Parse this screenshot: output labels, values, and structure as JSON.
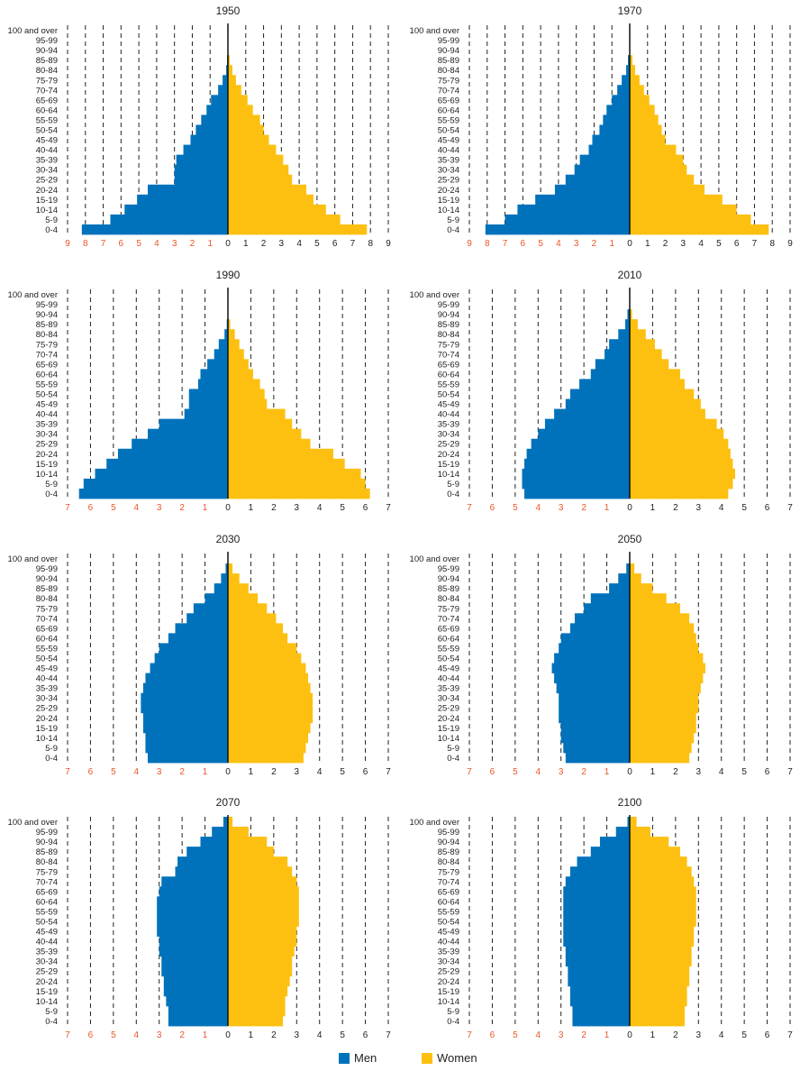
{
  "colors": {
    "men": "#0072BB",
    "women": "#FDC010",
    "axis_left_labels": "#E8562A",
    "axis_right_labels": "#222222"
  },
  "legend": {
    "men_label": "Men",
    "women_label": "Women"
  },
  "age_groups": [
    "0-4",
    "5-9",
    "10-14",
    "15-19",
    "20-24",
    "25-29",
    "30-34",
    "35-39",
    "40-44",
    "45-49",
    "50-54",
    "55-59",
    "60-64",
    "65-69",
    "70-74",
    "75-79",
    "80-84",
    "85-89",
    "90-94",
    "95-99",
    "100 and over"
  ],
  "chart_data": [
    {
      "type": "bar",
      "title": "1950",
      "xlim": [
        -9,
        9
      ],
      "ticks": [
        9,
        8,
        7,
        6,
        5,
        4,
        3,
        2,
        1,
        0,
        1,
        2,
        3,
        4,
        5,
        6,
        7,
        8,
        9
      ],
      "series": [
        {
          "name": "Men",
          "values": [
            8.2,
            6.6,
            5.8,
            5.1,
            4.5,
            3.0,
            3.0,
            2.9,
            2.5,
            2.1,
            1.8,
            1.5,
            1.2,
            0.95,
            0.55,
            0.3,
            0.1,
            0.05,
            0,
            0,
            0
          ]
        },
        {
          "name": "Women",
          "values": [
            7.8,
            6.3,
            5.5,
            4.8,
            4.4,
            3.6,
            3.4,
            3.1,
            2.7,
            2.3,
            2.0,
            1.8,
            1.4,
            1.1,
            0.75,
            0.45,
            0.25,
            0.1,
            0,
            0,
            0
          ]
        }
      ]
    },
    {
      "type": "bar",
      "title": "1970",
      "xlim": [
        -9,
        9
      ],
      "ticks": [
        9,
        8,
        7,
        6,
        5,
        4,
        3,
        2,
        1,
        0,
        1,
        2,
        3,
        4,
        5,
        6,
        7,
        8,
        9
      ],
      "series": [
        {
          "name": "Men",
          "values": [
            8.1,
            7.0,
            6.3,
            5.3,
            4.2,
            3.6,
            3.1,
            2.8,
            2.3,
            2.1,
            1.7,
            1.5,
            1.3,
            1.0,
            0.7,
            0.45,
            0.2,
            0.1,
            0,
            0,
            0
          ]
        },
        {
          "name": "Women",
          "values": [
            7.8,
            6.8,
            6.0,
            5.2,
            4.2,
            3.6,
            3.2,
            3.0,
            2.6,
            2.0,
            1.8,
            1.6,
            1.4,
            1.1,
            0.8,
            0.55,
            0.3,
            0.15,
            0,
            0,
            0
          ]
        }
      ]
    },
    {
      "type": "bar",
      "title": "1990",
      "xlim": [
        -7,
        7
      ],
      "ticks": [
        7,
        6,
        5,
        4,
        3,
        2,
        1,
        0,
        1,
        2,
        3,
        4,
        5,
        6,
        7
      ],
      "series": [
        {
          "name": "Men",
          "values": [
            6.5,
            6.3,
            5.8,
            5.3,
            4.8,
            4.2,
            3.5,
            3.0,
            1.9,
            1.7,
            1.7,
            1.3,
            1.2,
            0.9,
            0.6,
            0.4,
            0.15,
            0.05,
            0,
            0,
            0
          ]
        },
        {
          "name": "Women",
          "values": [
            6.2,
            6.0,
            5.8,
            5.1,
            4.6,
            3.6,
            3.2,
            2.8,
            2.5,
            1.7,
            1.6,
            1.4,
            1.1,
            0.9,
            0.7,
            0.5,
            0.3,
            0.1,
            0,
            0,
            0
          ]
        }
      ]
    },
    {
      "type": "bar",
      "title": "2010",
      "xlim": [
        -7,
        7
      ],
      "ticks": [
        7,
        6,
        5,
        4,
        3,
        2,
        1,
        0,
        1,
        2,
        3,
        4,
        5,
        6,
        7
      ],
      "series": [
        {
          "name": "Men",
          "values": [
            4.6,
            4.7,
            4.7,
            4.6,
            4.5,
            4.3,
            4.0,
            3.7,
            3.3,
            2.8,
            2.6,
            2.2,
            1.7,
            1.5,
            1.1,
            0.9,
            0.5,
            0.2,
            0.1,
            0,
            0
          ]
        },
        {
          "name": "Women",
          "values": [
            4.3,
            4.5,
            4.6,
            4.5,
            4.4,
            4.3,
            4.1,
            3.8,
            3.3,
            3.1,
            2.8,
            2.4,
            2.2,
            1.7,
            1.4,
            1.1,
            0.7,
            0.35,
            0.1,
            0,
            0
          ]
        }
      ]
    },
    {
      "type": "bar",
      "title": "2030",
      "xlim": [
        -7,
        7
      ],
      "ticks": [
        7,
        6,
        5,
        4,
        3,
        2,
        1,
        0,
        1,
        2,
        3,
        4,
        5,
        6,
        7
      ],
      "series": [
        {
          "name": "Men",
          "values": [
            3.5,
            3.6,
            3.6,
            3.7,
            3.7,
            3.8,
            3.8,
            3.7,
            3.6,
            3.4,
            3.2,
            3.0,
            2.6,
            2.3,
            1.8,
            1.5,
            1.0,
            0.6,
            0.3,
            0.1,
            0
          ]
        },
        {
          "name": "Women",
          "values": [
            3.3,
            3.4,
            3.5,
            3.6,
            3.7,
            3.7,
            3.7,
            3.6,
            3.5,
            3.4,
            3.2,
            3.0,
            2.6,
            2.4,
            2.1,
            1.7,
            1.3,
            0.9,
            0.5,
            0.2,
            0
          ]
        }
      ]
    },
    {
      "type": "bar",
      "title": "2050",
      "xlim": [
        -7,
        7
      ],
      "ticks": [
        7,
        6,
        5,
        4,
        3,
        2,
        1,
        0,
        1,
        2,
        3,
        4,
        5,
        6,
        7
      ],
      "series": [
        {
          "name": "Men",
          "values": [
            2.8,
            2.9,
            3.0,
            3.0,
            3.1,
            3.1,
            3.1,
            3.2,
            3.3,
            3.4,
            3.3,
            3.1,
            3.0,
            2.6,
            2.4,
            2.0,
            1.7,
            0.9,
            0.5,
            0.15,
            0
          ]
        },
        {
          "name": "Women",
          "values": [
            2.6,
            2.7,
            2.8,
            2.9,
            2.9,
            3.0,
            3.0,
            3.1,
            3.2,
            3.3,
            3.2,
            3.0,
            2.9,
            2.8,
            2.6,
            2.2,
            1.6,
            1.0,
            0.5,
            0.2,
            0
          ]
        }
      ]
    },
    {
      "type": "bar",
      "title": "2070",
      "xlim": [
        -7,
        7
      ],
      "ticks": [
        7,
        6,
        5,
        4,
        3,
        2,
        1,
        0,
        1,
        2,
        3,
        4,
        5,
        6,
        7
      ],
      "series": [
        {
          "name": "Men",
          "values": [
            2.6,
            2.6,
            2.7,
            2.8,
            2.8,
            2.9,
            2.9,
            3.0,
            3.0,
            3.1,
            3.1,
            3.1,
            3.1,
            3.0,
            2.9,
            2.3,
            2.2,
            1.8,
            1.2,
            0.7,
            0.2
          ]
        },
        {
          "name": "Women",
          "values": [
            2.4,
            2.5,
            2.5,
            2.6,
            2.7,
            2.8,
            2.8,
            2.9,
            3.0,
            3.0,
            3.1,
            3.1,
            3.1,
            3.1,
            3.0,
            2.8,
            2.6,
            2.0,
            1.7,
            0.9,
            0.2
          ]
        }
      ]
    },
    {
      "type": "bar",
      "title": "2100",
      "xlim": [
        -7,
        7
      ],
      "ticks": [
        7,
        6,
        5,
        4,
        3,
        2,
        1,
        0,
        1,
        2,
        3,
        4,
        5,
        6,
        7
      ],
      "series": [
        {
          "name": "Men",
          "values": [
            2.5,
            2.5,
            2.6,
            2.6,
            2.7,
            2.7,
            2.8,
            2.8,
            2.9,
            2.9,
            2.9,
            2.9,
            2.9,
            2.9,
            2.8,
            2.6,
            2.3,
            1.7,
            1.3,
            0.6,
            0.1
          ]
        },
        {
          "name": "Women",
          "values": [
            2.4,
            2.4,
            2.5,
            2.5,
            2.6,
            2.6,
            2.7,
            2.7,
            2.8,
            2.8,
            2.9,
            2.9,
            2.9,
            2.9,
            2.8,
            2.7,
            2.5,
            2.2,
            1.7,
            0.9,
            0.3
          ]
        }
      ]
    }
  ]
}
